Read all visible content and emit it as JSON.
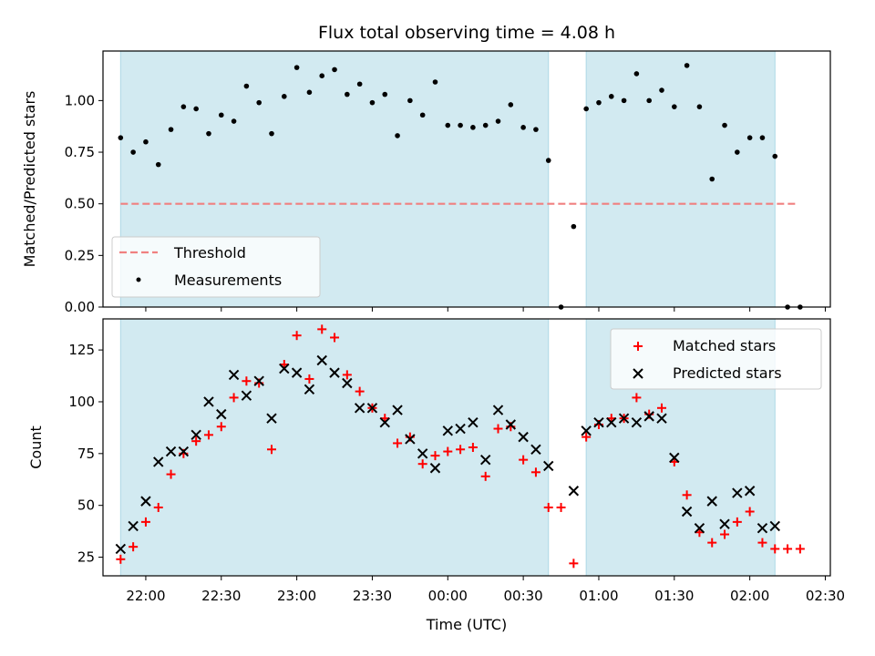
{
  "title": "Flux total observing time = 4.08 h",
  "colors": {
    "shade": "#add8e6",
    "threshold": "#f08080",
    "measurement": "#000000",
    "matched": "#ff0000",
    "predicted": "#000000"
  },
  "chart_data": [
    {
      "type": "scatter",
      "panel": "top",
      "ylabel": "Matched/Predicted stars",
      "xlim": [
        "21:43",
        "02:32"
      ],
      "ylim": [
        0,
        1.24
      ],
      "yticks": [
        "0.00",
        "0.25",
        "0.50",
        "0.75",
        "1.00"
      ],
      "xtick_labels_visible": false,
      "shaded_intervals": [
        [
          "21:50",
          "00:40"
        ],
        [
          "00:55",
          "02:10"
        ]
      ],
      "threshold": {
        "name": "Threshold",
        "value": 0.5,
        "x_range": [
          "21:50",
          "02:18"
        ],
        "style": "dashed"
      },
      "legend": {
        "placement": "lower-left",
        "entries": [
          "Threshold",
          "Measurements"
        ]
      },
      "series": [
        {
          "name": "Measurements",
          "marker": "dot",
          "x": [
            "21:50",
            "21:55",
            "22:00",
            "22:05",
            "22:10",
            "22:15",
            "22:20",
            "22:25",
            "22:30",
            "22:35",
            "22:40",
            "22:45",
            "22:50",
            "22:55",
            "23:00",
            "23:05",
            "23:10",
            "23:15",
            "23:20",
            "23:25",
            "23:30",
            "23:35",
            "23:40",
            "23:45",
            "23:50",
            "23:55",
            "00:00",
            "00:05",
            "00:10",
            "00:15",
            "00:20",
            "00:25",
            "00:30",
            "00:35",
            "00:40",
            "00:45",
            "00:50",
            "00:55",
            "01:00",
            "01:05",
            "01:10",
            "01:15",
            "01:20",
            "01:25",
            "01:30",
            "01:35",
            "01:40",
            "01:45",
            "01:50",
            "01:55",
            "02:00",
            "02:05",
            "02:10",
            "02:15",
            "02:20"
          ],
          "values": [
            0.82,
            0.75,
            0.8,
            0.69,
            0.86,
            0.97,
            0.96,
            0.84,
            0.93,
            0.9,
            1.07,
            0.99,
            0.84,
            1.02,
            1.16,
            1.04,
            1.12,
            1.15,
            1.03,
            1.08,
            0.99,
            1.03,
            0.83,
            1.0,
            0.93,
            1.09,
            0.88,
            0.88,
            0.87,
            0.88,
            0.9,
            0.98,
            0.87,
            0.86,
            0.71,
            0.0,
            0.39,
            0.96,
            0.99,
            1.02,
            1.0,
            1.13,
            1.0,
            1.05,
            0.97,
            1.17,
            0.97,
            0.62,
            0.88,
            0.75,
            0.82,
            0.82,
            0.73,
            0.0,
            0.0
          ]
        }
      ]
    },
    {
      "type": "scatter",
      "panel": "bottom",
      "ylabel": "Count",
      "xlabel": "Time (UTC)",
      "xlim": [
        "21:43",
        "02:32"
      ],
      "ylim": [
        16,
        140
      ],
      "yticks": [
        25,
        50,
        75,
        100,
        125
      ],
      "xticks": [
        "22:00",
        "22:30",
        "23:00",
        "23:30",
        "00:00",
        "00:30",
        "01:00",
        "01:30",
        "02:00",
        "02:30"
      ],
      "shaded_intervals": [
        [
          "21:50",
          "00:40"
        ],
        [
          "00:55",
          "02:10"
        ]
      ],
      "legend": {
        "placement": "upper-right",
        "entries": [
          "Matched stars",
          "Predicted stars"
        ]
      },
      "series": [
        {
          "name": "Matched stars",
          "marker": "plus",
          "x": [
            "21:50",
            "21:55",
            "22:00",
            "22:05",
            "22:10",
            "22:15",
            "22:20",
            "22:25",
            "22:30",
            "22:35",
            "22:40",
            "22:45",
            "22:50",
            "22:55",
            "23:00",
            "23:05",
            "23:10",
            "23:15",
            "23:20",
            "23:25",
            "23:30",
            "23:35",
            "23:40",
            "23:45",
            "23:50",
            "23:55",
            "00:00",
            "00:05",
            "00:10",
            "00:15",
            "00:20",
            "00:25",
            "00:30",
            "00:35",
            "00:40",
            "00:45",
            "00:50",
            "00:55",
            "01:00",
            "01:05",
            "01:10",
            "01:15",
            "01:20",
            "01:25",
            "01:30",
            "01:35",
            "01:40",
            "01:45",
            "01:50",
            "01:55",
            "02:00",
            "02:05",
            "02:10",
            "02:15",
            "02:20"
          ],
          "values": [
            24,
            30,
            42,
            49,
            65,
            75,
            81,
            84,
            88,
            102,
            110,
            109,
            77,
            118,
            132,
            111,
            135,
            131,
            113,
            105,
            97,
            92,
            80,
            83,
            70,
            74,
            76,
            77,
            78,
            64,
            87,
            88,
            72,
            66,
            49,
            49,
            22,
            83,
            89,
            92,
            92,
            102,
            94,
            97,
            71,
            55,
            37,
            32,
            36,
            42,
            47,
            32,
            29,
            29,
            29
          ]
        },
        {
          "name": "Predicted stars",
          "marker": "x",
          "x": [
            "21:50",
            "21:55",
            "22:00",
            "22:05",
            "22:10",
            "22:15",
            "22:20",
            "22:25",
            "22:30",
            "22:35",
            "22:40",
            "22:45",
            "22:50",
            "22:55",
            "23:00",
            "23:05",
            "23:10",
            "23:15",
            "23:20",
            "23:25",
            "23:30",
            "23:35",
            "23:40",
            "23:45",
            "23:50",
            "23:55",
            "00:00",
            "00:05",
            "00:10",
            "00:15",
            "00:20",
            "00:25",
            "00:30",
            "00:35",
            "00:40",
            "00:50",
            "00:55",
            "01:00",
            "01:05",
            "01:10",
            "01:15",
            "01:20",
            "01:25",
            "01:30",
            "01:35",
            "01:40",
            "01:45",
            "01:50",
            "01:55",
            "02:00",
            "02:05",
            "02:10"
          ],
          "values": [
            29,
            40,
            52,
            71,
            76,
            76,
            84,
            100,
            94,
            113,
            103,
            110,
            92,
            116,
            114,
            106,
            120,
            114,
            109,
            97,
            97,
            90,
            96,
            82,
            75,
            68,
            86,
            87,
            90,
            72,
            96,
            89,
            83,
            77,
            69,
            57,
            86,
            90,
            90,
            92,
            90,
            93,
            92,
            73,
            47,
            39,
            52,
            41,
            56,
            57,
            39,
            40
          ]
        }
      ]
    }
  ]
}
